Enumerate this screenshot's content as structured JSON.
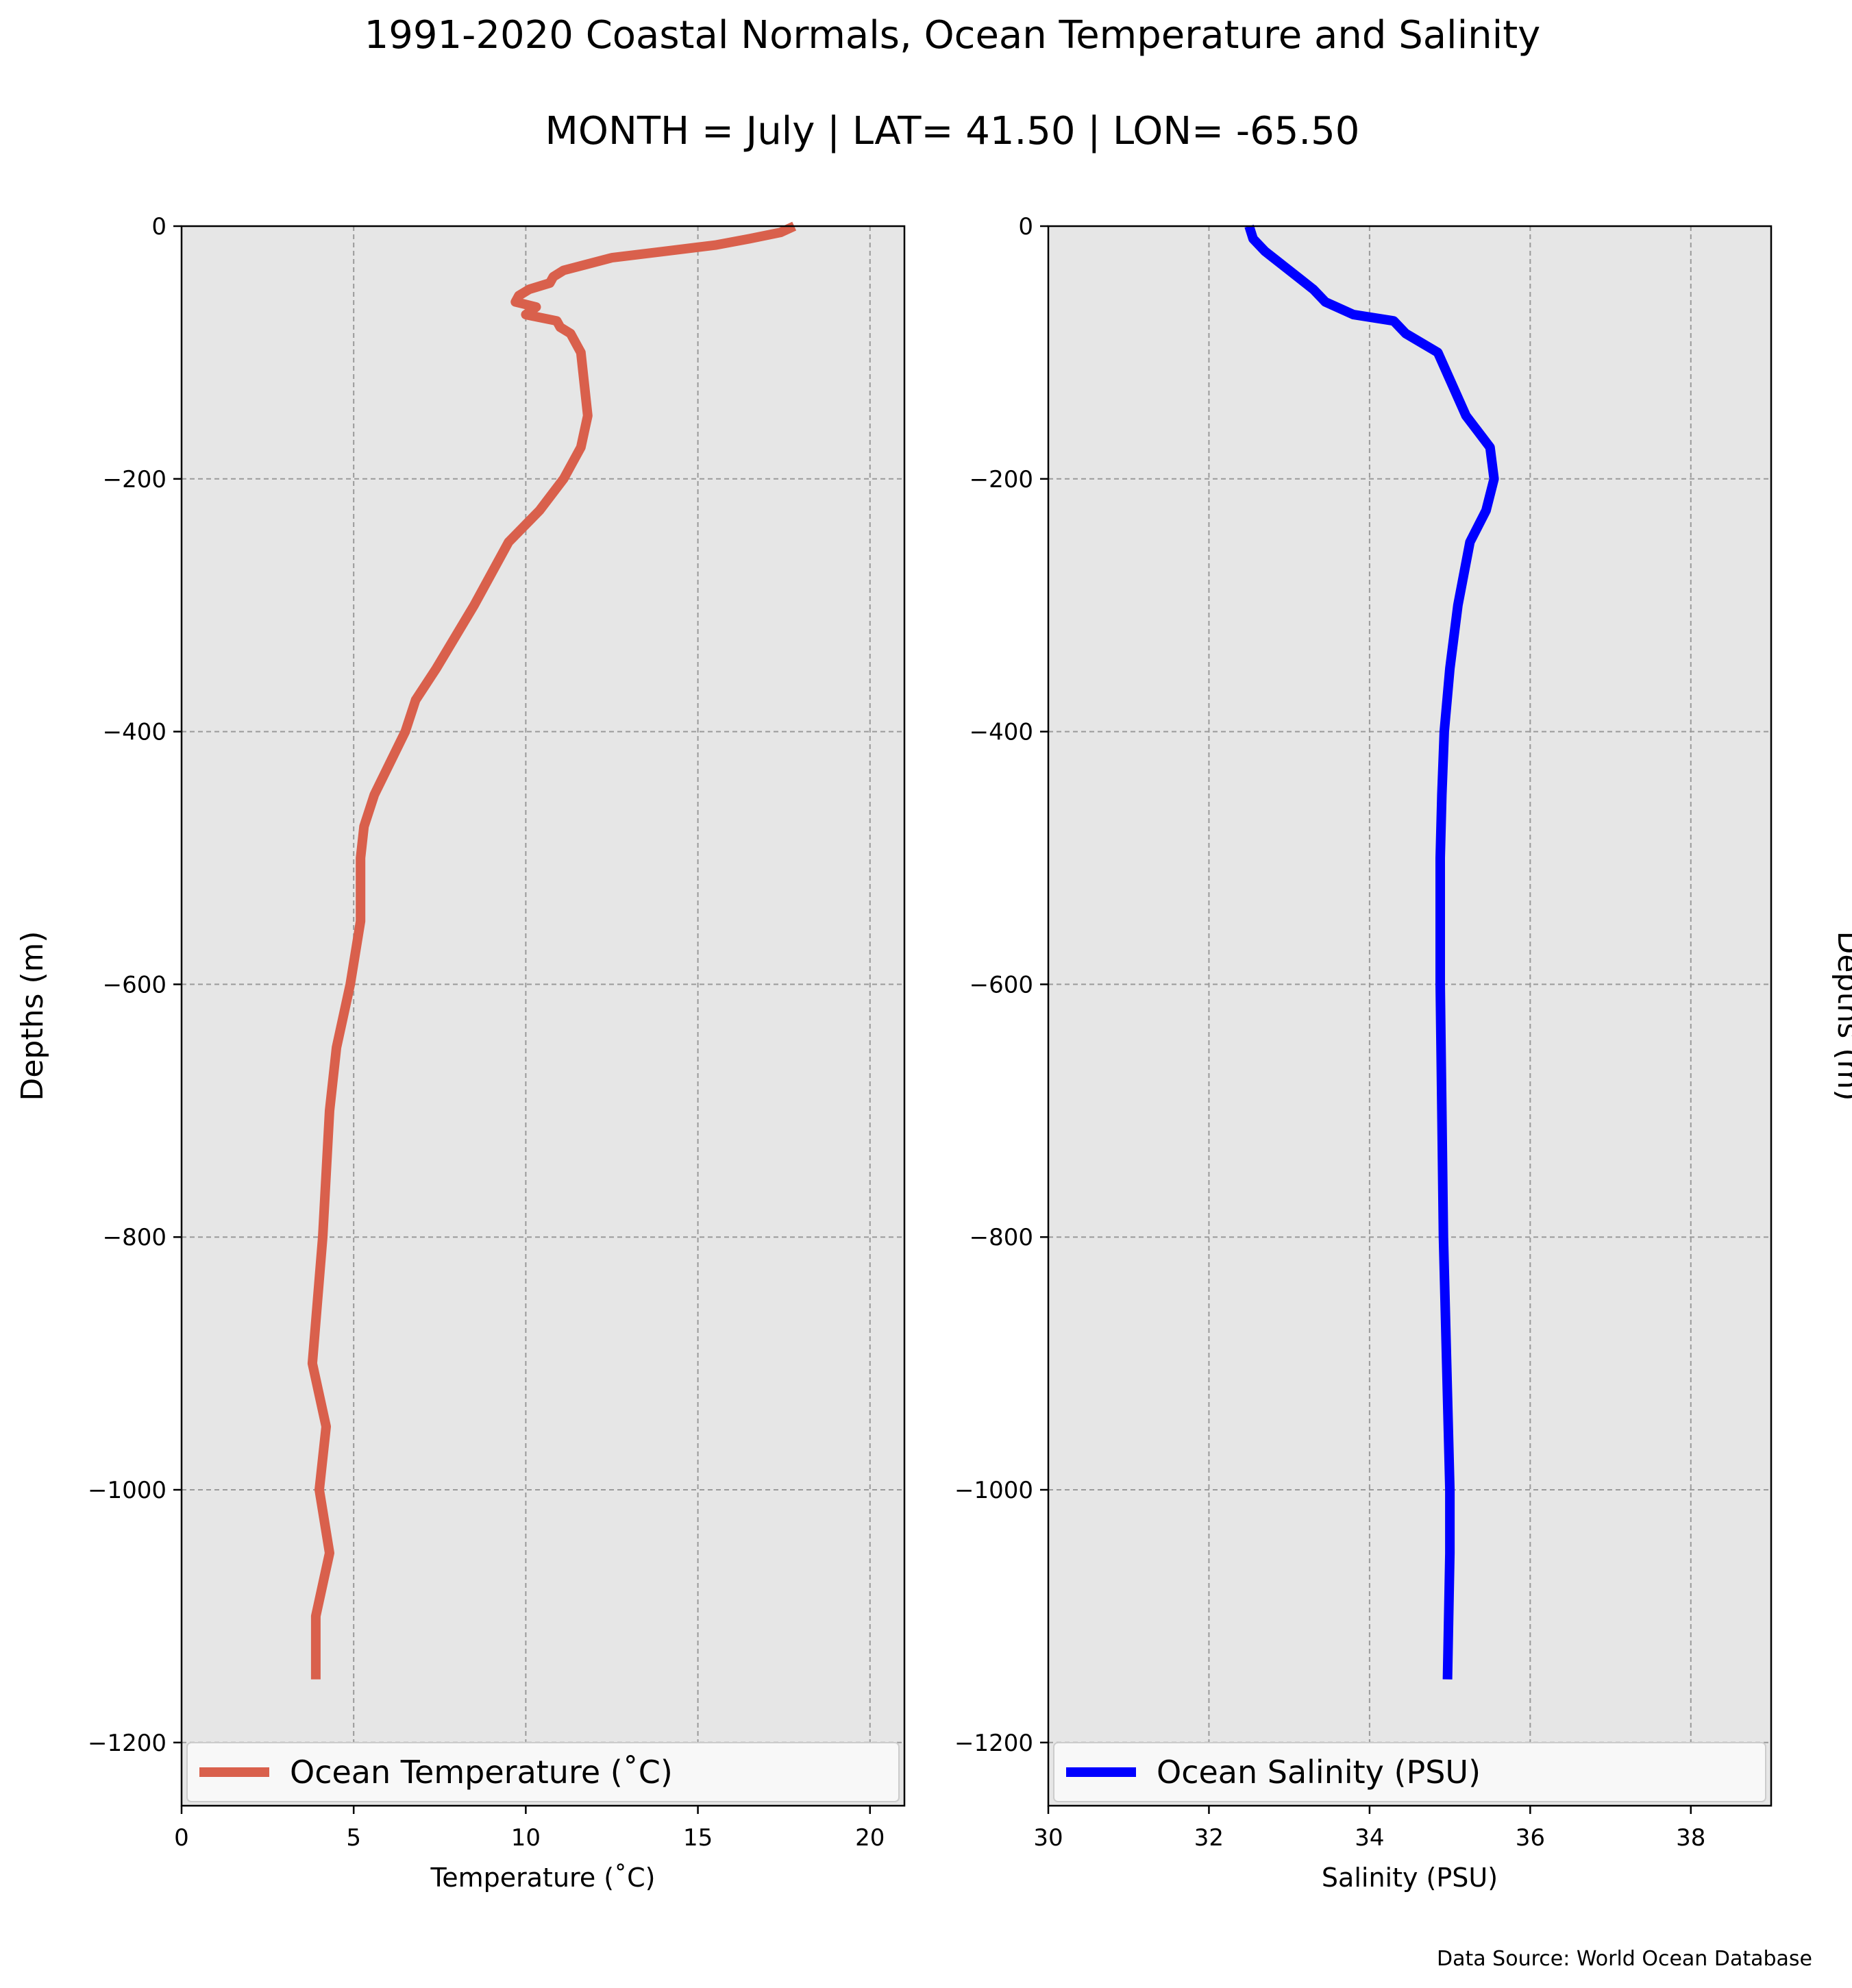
{
  "figure": {
    "title": "1991-2020 Coastal Normals, Ocean Temperature and Salinity",
    "subtitle": "MONTH = July | LAT= 41.50 | LON= -65.50",
    "source": "Data Source: World Ocean Database"
  },
  "chart_data": [
    {
      "type": "line",
      "xlabel": "Temperature (˚C)",
      "ylabel": "Depths (m)",
      "ylabel_side": "left",
      "xlim": [
        0,
        21
      ],
      "ylim": [
        -1250,
        0
      ],
      "xticks": [
        0,
        5,
        10,
        15,
        20
      ],
      "xtick_labels": [
        "0",
        "5",
        "10",
        "15",
        "20"
      ],
      "yticks": [
        0,
        -200,
        -400,
        -600,
        -800,
        -1000,
        -1200
      ],
      "ytick_labels": [
        "0",
        "−200",
        "−400",
        "−600",
        "−800",
        "−1000",
        "−1200"
      ],
      "grid": true,
      "legend": "lower-center",
      "series": [
        {
          "name": "Ocean Temperature (˚C)",
          "color": "#d9604c",
          "x": [
            17.8,
            17.4,
            16.5,
            15.5,
            14.0,
            12.5,
            11.8,
            11.1,
            10.8,
            10.7,
            10.1,
            9.8,
            9.7,
            10.0,
            10.3,
            10.0,
            10.9,
            11.0,
            11.3,
            11.6,
            11.7,
            11.8,
            11.6,
            11.1,
            10.4,
            9.5,
            8.5,
            7.4,
            6.8,
            6.5,
            5.6,
            5.3,
            5.2,
            5.2,
            4.9,
            4.5,
            4.3,
            4.1,
            3.8,
            4.2,
            4.0,
            4.3,
            3.9,
            3.9
          ],
          "y": [
            0,
            -5,
            -10,
            -15,
            -20,
            -25,
            -30,
            -35,
            -40,
            -45,
            -50,
            -55,
            -60,
            -62,
            -64,
            -70,
            -75,
            -80,
            -85,
            -100,
            -125,
            -150,
            -175,
            -200,
            -225,
            -250,
            -300,
            -350,
            -375,
            -400,
            -450,
            -475,
            -500,
            -550,
            -600,
            -650,
            -700,
            -800,
            -900,
            -950,
            -1000,
            -1050,
            -1100,
            -1150
          ]
        }
      ]
    },
    {
      "type": "line",
      "xlabel": "Salinity (PSU)",
      "ylabel": "Depths (m)",
      "ylabel_side": "right",
      "xlim": [
        30,
        39
      ],
      "ylim": [
        -1250,
        0
      ],
      "xticks": [
        30,
        32,
        34,
        36,
        38
      ],
      "xtick_labels": [
        "30",
        "32",
        "34",
        "36",
        "38"
      ],
      "yticks": [
        0,
        -200,
        -400,
        -600,
        -800,
        -1000,
        -1200
      ],
      "ytick_labels": [
        "0",
        "−200",
        "−400",
        "−600",
        "−800",
        "−1000",
        "−1200"
      ],
      "grid": true,
      "legend": "lower-center",
      "series": [
        {
          "name": "Ocean Salinity (PSU)",
          "color": "#0000ff",
          "x": [
            32.5,
            32.55,
            32.7,
            32.9,
            33.1,
            33.3,
            33.45,
            33.8,
            34.3,
            34.45,
            34.85,
            35.2,
            35.5,
            35.55,
            35.45,
            35.25,
            35.1,
            35.0,
            34.93,
            34.9,
            34.88,
            34.88,
            34.9,
            34.92,
            34.96,
            35.0,
            35.0,
            34.97
          ],
          "y": [
            0,
            -10,
            -20,
            -30,
            -40,
            -50,
            -60,
            -70,
            -75,
            -85,
            -100,
            -150,
            -175,
            -200,
            -225,
            -250,
            -300,
            -350,
            -400,
            -450,
            -500,
            -600,
            -700,
            -800,
            -900,
            -1000,
            -1050,
            -1150
          ]
        }
      ]
    }
  ]
}
